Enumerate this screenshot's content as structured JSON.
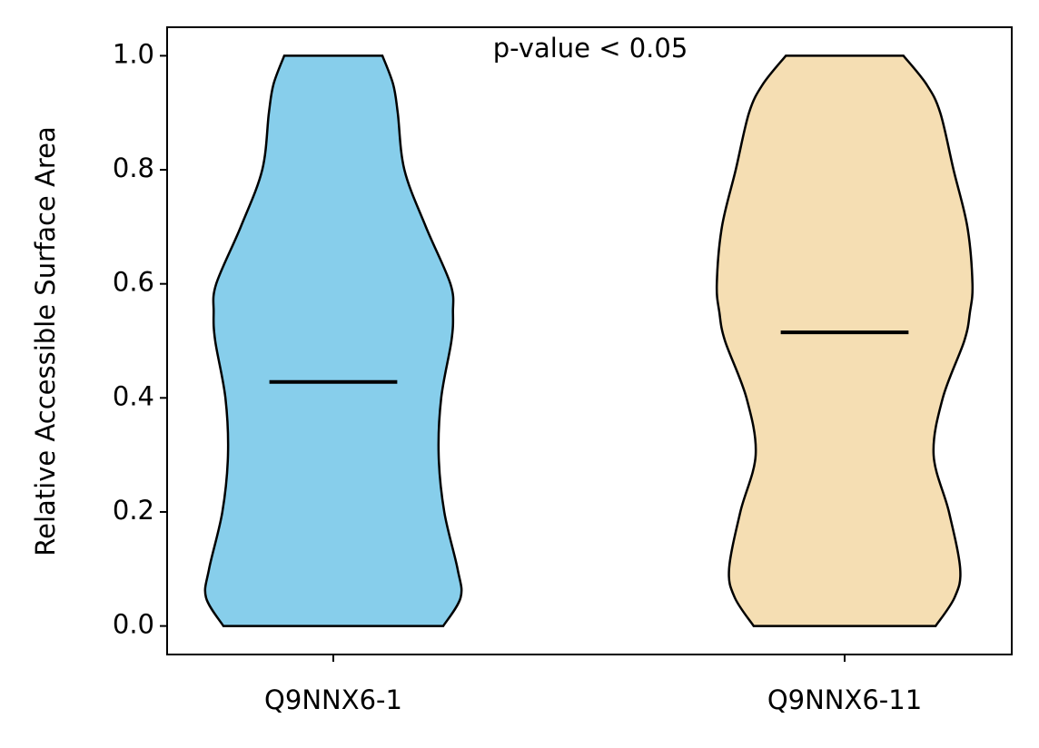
{
  "chart_data": {
    "type": "violin",
    "annotation": "p-value < 0.05",
    "y_label": "Relative Accessible Surface Area",
    "categories": [
      "Q9NNX6-1",
      "Q9NNX6-11"
    ],
    "violin_y": [
      0,
      0.05,
      0.1,
      0.2,
      0.3,
      0.4,
      0.5,
      0.55,
      0.6,
      0.7,
      0.8,
      0.9,
      0.95,
      1.0
    ],
    "series": [
      {
        "color": "#87ceeb",
        "median": 0.428,
        "widths": [
          0.215,
          0.249,
          0.243,
          0.217,
          0.206,
          0.211,
          0.231,
          0.234,
          0.229,
          0.181,
          0.139,
          0.126,
          0.117,
          0.096
        ]
      },
      {
        "color": "#f5deb3",
        "median": 0.515,
        "widths": [
          0.178,
          0.215,
          0.226,
          0.204,
          0.174,
          0.192,
          0.234,
          0.245,
          0.25,
          0.24,
          0.213,
          0.187,
          0.16,
          0.115
        ]
      }
    ],
    "ylim": [
      -0.05,
      1.05
    ],
    "yticks": [
      {
        "value": 0,
        "label": "0.0"
      },
      0.2,
      0.4,
      0.6,
      0.8,
      {
        "value": 1,
        "label": "1.0"
      }
    ]
  }
}
